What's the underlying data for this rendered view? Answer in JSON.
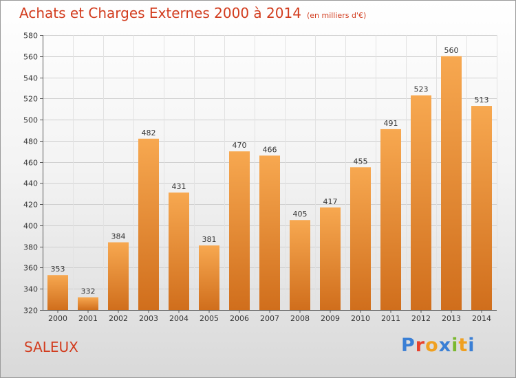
{
  "header": {
    "title": "Achats et Charges Externes 2000 à 2014",
    "unit": "(en milliers d'€)"
  },
  "footer": {
    "location": "SALEUX",
    "brand": "Proxiti",
    "brand_colors": [
      "#3a7fd5",
      "#e8412c",
      "#f0a020",
      "#3a7fd5",
      "#7ab82e",
      "#f0a020",
      "#3a7fd5"
    ]
  },
  "chart_data": {
    "type": "bar",
    "title": "Achats et Charges Externes 2000 à 2014",
    "subtitle": "(en milliers d'€)",
    "xlabel": "",
    "ylabel": "",
    "categories": [
      "2000",
      "2001",
      "2002",
      "2003",
      "2004",
      "2005",
      "2006",
      "2007",
      "2008",
      "2009",
      "2010",
      "2011",
      "2012",
      "2013",
      "2014"
    ],
    "values": [
      353,
      332,
      384,
      482,
      431,
      381,
      470,
      466,
      405,
      417,
      455,
      491,
      523,
      560,
      513
    ],
    "ylim": [
      320,
      580
    ],
    "yticks": [
      320,
      340,
      360,
      380,
      400,
      420,
      440,
      460,
      480,
      500,
      520,
      540,
      560,
      580
    ],
    "grid": true,
    "bar_color": "#f5a04a",
    "bar_color_dark": "#d9701c"
  }
}
